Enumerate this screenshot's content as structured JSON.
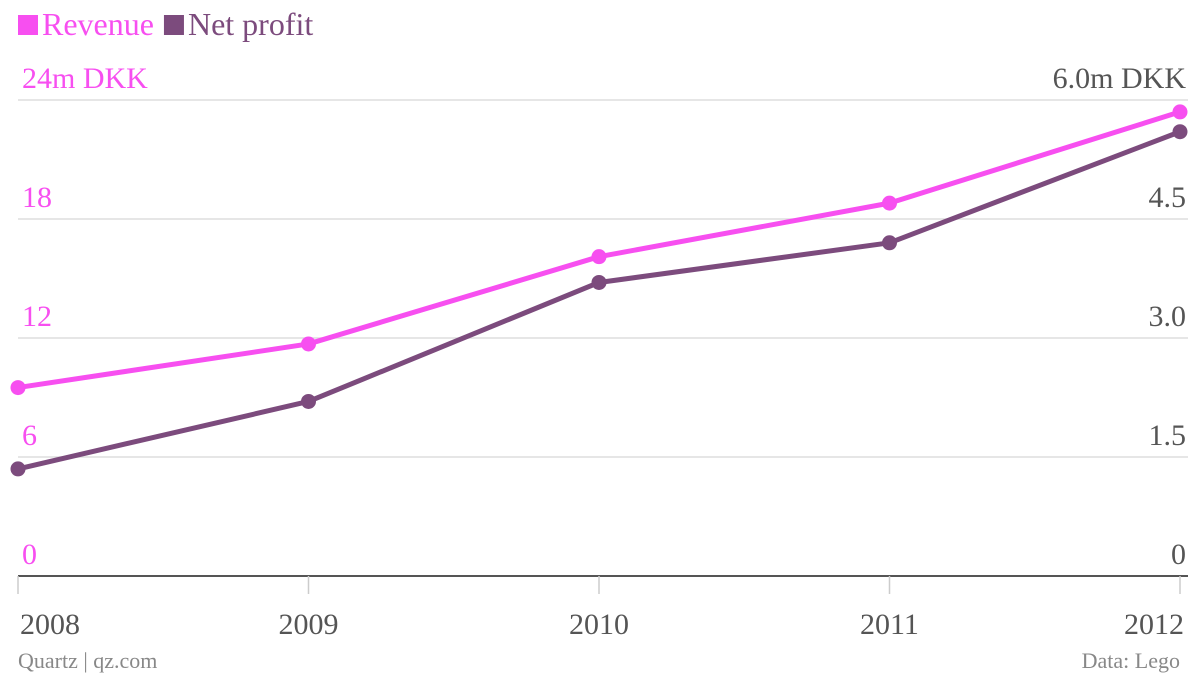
{
  "colors": {
    "revenue": "#f74ff0",
    "net_profit": "#7c4b7d",
    "right_axis": "#555555",
    "x_axis": "#555555",
    "footer": "#888888",
    "grid": "#dddddd",
    "baseline": "#555555"
  },
  "legend": [
    {
      "label": "Revenue",
      "color": "#f74ff0"
    },
    {
      "label": "Net profit",
      "color": "#7c4b7d"
    }
  ],
  "footer": {
    "source_left": "Quartz | qz.com",
    "source_right": "Data: Lego"
  },
  "chart_data": {
    "type": "line",
    "x": [
      "2008",
      "2009",
      "2010",
      "2011",
      "2012"
    ],
    "series": [
      {
        "name": "Revenue",
        "axis": "left",
        "values": [
          9.5,
          11.7,
          16.1,
          18.8,
          23.4
        ]
      },
      {
        "name": "Net profit",
        "axis": "right",
        "values": [
          1.35,
          2.2,
          3.7,
          4.2,
          5.6
        ]
      }
    ],
    "y_left": {
      "range": [
        0,
        24
      ],
      "ticks": [
        0,
        6,
        12,
        18,
        24
      ],
      "tick_labels": [
        "0",
        "6",
        "12",
        "18",
        "24m DKK"
      ]
    },
    "y_right": {
      "range": [
        0,
        6
      ],
      "ticks": [
        0,
        1.5,
        3.0,
        4.5,
        6.0
      ],
      "tick_labels": [
        "0",
        "1.5",
        "3.0",
        "4.5",
        "6.0m DKK"
      ]
    },
    "grid": true,
    "legend_position": "top-left"
  }
}
